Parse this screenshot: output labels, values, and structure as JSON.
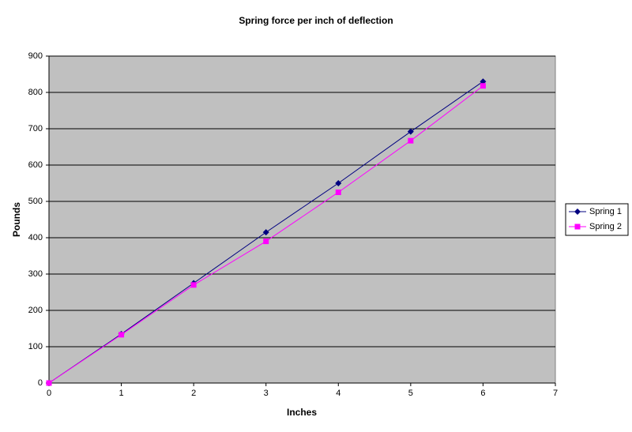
{
  "chart_data": {
    "type": "line",
    "title": "Spring force per inch of deflection",
    "x_label": "Inches",
    "y_label": "Pounds",
    "x": [
      0,
      1,
      2,
      3,
      4,
      5,
      6
    ],
    "series": [
      {
        "name": "Spring 1",
        "color": "#000080",
        "marker": "diamond",
        "values": [
          0,
          135,
          275,
          415,
          550,
          692,
          830
        ]
      },
      {
        "name": "Spring 2",
        "color": "#ff00ff",
        "marker": "square",
        "values": [
          0,
          133,
          270,
          390,
          525,
          667,
          818
        ]
      }
    ],
    "xlim": [
      0,
      7
    ],
    "xticks": [
      0,
      1,
      2,
      3,
      4,
      5,
      6,
      7
    ],
    "ylim": [
      0,
      900
    ],
    "yticks": [
      0,
      100,
      200,
      300,
      400,
      500,
      600,
      700,
      800,
      900
    ],
    "grid": true,
    "plot_background": "#c0c0c0",
    "legend": "right"
  }
}
